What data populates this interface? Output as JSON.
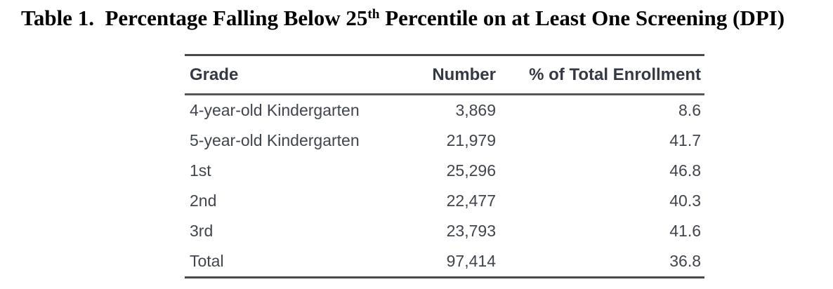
{
  "title": {
    "prefix": "Table 1.  Percentage Falling Below 25",
    "superscript": "th",
    "suffix": " Percentile on at Least One Screening (DPI)"
  },
  "table": {
    "headers": [
      "Grade",
      "Number",
      "% of Total Enrollment"
    ],
    "rows": [
      {
        "grade": "4-year-old Kindergarten",
        "number": "3,869",
        "pct": "8.6"
      },
      {
        "grade": "5-year-old Kindergarten",
        "number": "21,979",
        "pct": "41.7"
      },
      {
        "grade": "1st",
        "number": "25,296",
        "pct": "46.8"
      },
      {
        "grade": "2nd",
        "number": "22,477",
        "pct": "40.3"
      },
      {
        "grade": "3rd",
        "number": "23,793",
        "pct": "41.6"
      },
      {
        "grade": "Total",
        "number": "97,414",
        "pct": "36.8"
      }
    ]
  },
  "colors": {
    "page_background": "#ffffff",
    "title_text": "#000000",
    "header_text": "#343943",
    "body_text": "#41454e",
    "rule": "#4a4a4a"
  }
}
